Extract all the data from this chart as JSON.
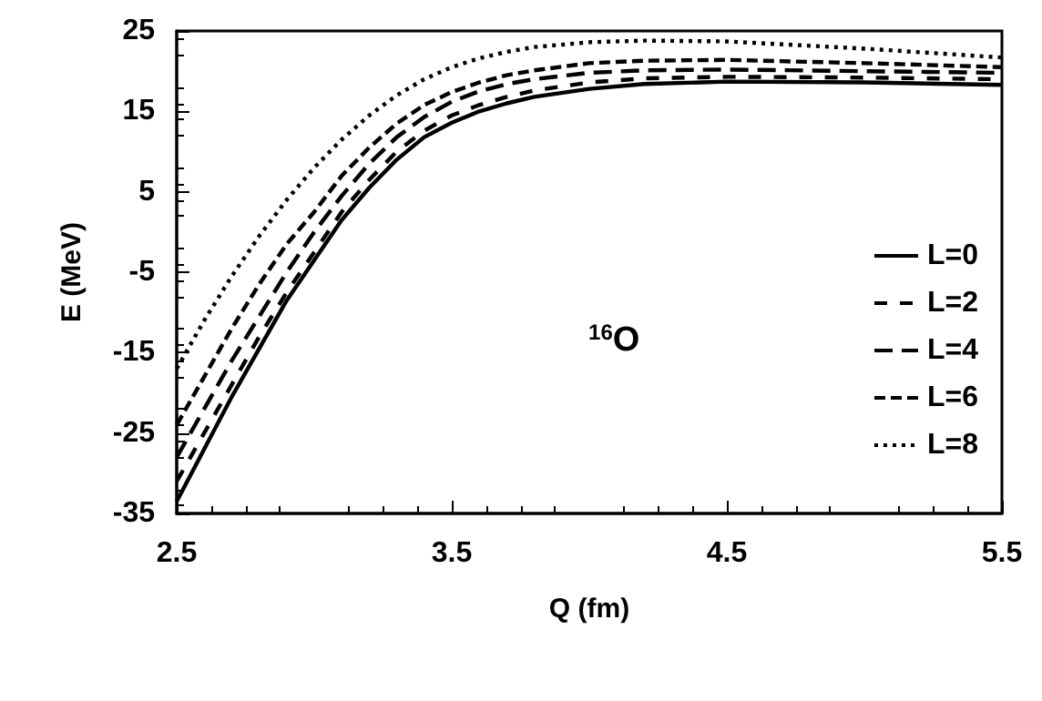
{
  "chart_data": {
    "type": "line",
    "xlabel": "Q (fm)",
    "ylabel": "E (MeV)",
    "x": [
      2.5,
      2.6,
      2.7,
      2.8,
      2.9,
      3.0,
      3.1,
      3.2,
      3.3,
      3.4,
      3.5,
      3.6,
      3.7,
      3.8,
      4.0,
      4.2,
      4.5,
      5.0,
      5.5
    ],
    "series": [
      {
        "name": "L=0",
        "color": "#000000",
        "line_style": "solid",
        "values": [
          -33.5,
          -27,
          -20.5,
          -14.5,
          -8.5,
          -3.5,
          1.5,
          5.5,
          9,
          11.8,
          13.6,
          15,
          16,
          16.8,
          17.8,
          18.4,
          18.7,
          18.6,
          18.3
        ]
      },
      {
        "name": "L=2",
        "color": "#000000",
        "line_style": "dashed",
        "values": [
          -31,
          -25,
          -19,
          -13,
          -7.5,
          -2.5,
          2.5,
          6.5,
          10,
          12.6,
          14.5,
          15.8,
          16.8,
          17.6,
          18.6,
          19.1,
          19.3,
          19.2,
          19
        ]
      },
      {
        "name": "L=4",
        "color": "#000000",
        "line_style": "dashed",
        "values": [
          -28,
          -22,
          -16,
          -10.5,
          -5,
          0,
          4.5,
          8.5,
          11.8,
          14.3,
          16.2,
          17.5,
          18.4,
          19,
          19.8,
          20.1,
          20.2,
          20,
          19.8
        ]
      },
      {
        "name": "L=6",
        "color": "#000000",
        "line_style": "dashed",
        "values": [
          -24,
          -18,
          -12,
          -6.5,
          -1.5,
          2.5,
          7,
          10.5,
          13.5,
          15.8,
          17.4,
          18.6,
          19.5,
          20.1,
          21,
          21.3,
          21.4,
          21,
          20.5
        ]
      },
      {
        "name": "L=8",
        "color": "#000000",
        "line_style": "dotted",
        "values": [
          -17,
          -11,
          -5.5,
          -0.5,
          4,
          8,
          11.5,
          14.5,
          17,
          19,
          20.5,
          21.6,
          22.4,
          23,
          23.6,
          23.8,
          23.7,
          22.8,
          21.7
        ]
      }
    ],
    "xlim": [
      2.5,
      5.5
    ],
    "xticks": [
      2.5,
      3.5,
      4.5,
      5.5
    ],
    "ylim": [
      -35,
      25
    ],
    "yticks": [
      -35,
      -25,
      -15,
      -5,
      5,
      15,
      25
    ],
    "annotations": [
      "$^{16}$O"
    ],
    "grid": false,
    "legend": "right",
    "marker": "none"
  }
}
